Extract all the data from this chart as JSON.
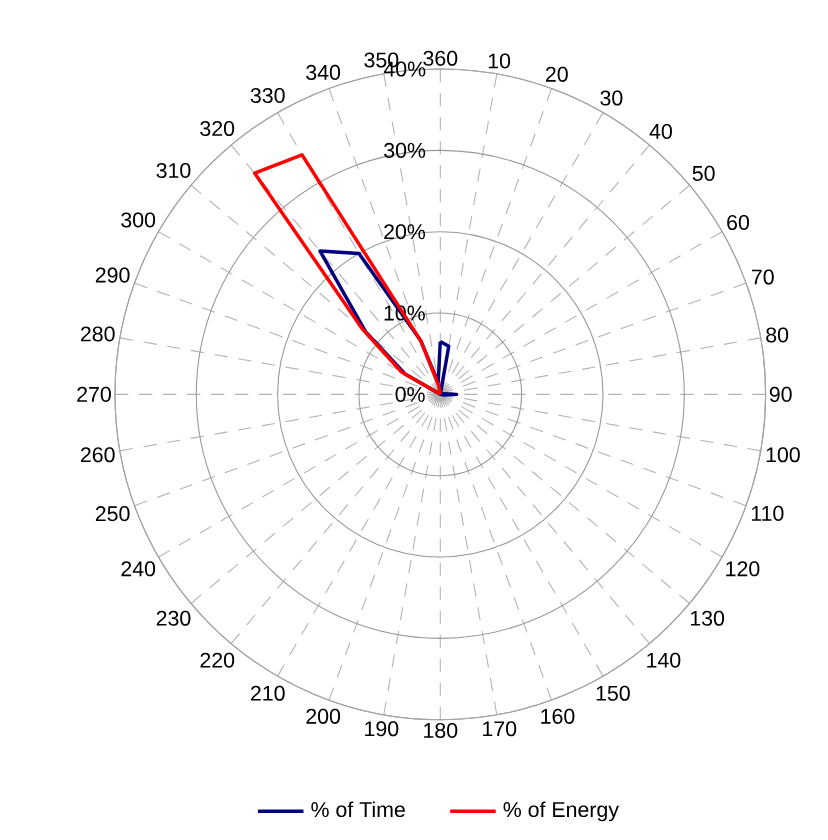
{
  "chart_data": {
    "type": "radar",
    "categories": [
      "360",
      "10",
      "20",
      "30",
      "40",
      "50",
      "60",
      "70",
      "80",
      "90",
      "100",
      "110",
      "120",
      "130",
      "140",
      "150",
      "160",
      "170",
      "180",
      "190",
      "200",
      "210",
      "220",
      "230",
      "240",
      "250",
      "260",
      "270",
      "280",
      "290",
      "300",
      "310",
      "320",
      "330",
      "340",
      "350"
    ],
    "series": [
      {
        "name": "% of Time",
        "color": "#000080",
        "values": [
          6.5,
          6,
          0,
          0,
          0,
          0,
          0,
          0,
          0.5,
          2,
          0.5,
          0,
          0,
          0,
          0,
          0,
          0,
          0,
          0,
          0,
          0,
          0,
          0,
          0,
          0,
          0,
          0,
          0,
          0,
          0,
          5,
          12,
          23,
          20,
          7,
          1.5
        ]
      },
      {
        "name": "% of Energy",
        "color": "#ff0000",
        "values": [
          0,
          0,
          0,
          0,
          0,
          0,
          0,
          0,
          0,
          0,
          0,
          0,
          0,
          0,
          0,
          0,
          0,
          0,
          0,
          0,
          0,
          0,
          0,
          0,
          0,
          0,
          0,
          0,
          0,
          0,
          5.5,
          12.5,
          35.5,
          34,
          7,
          1
        ]
      }
    ],
    "ylim": [
      0,
      40
    ],
    "yticks": [
      {
        "value": 0,
        "label": "0%"
      },
      {
        "value": 10,
        "label": "10%"
      },
      {
        "value": 20,
        "label": "20%"
      },
      {
        "value": 30,
        "label": "30%"
      },
      {
        "value": 40,
        "label": "40%"
      }
    ],
    "grid": true,
    "legend": "bottom"
  }
}
